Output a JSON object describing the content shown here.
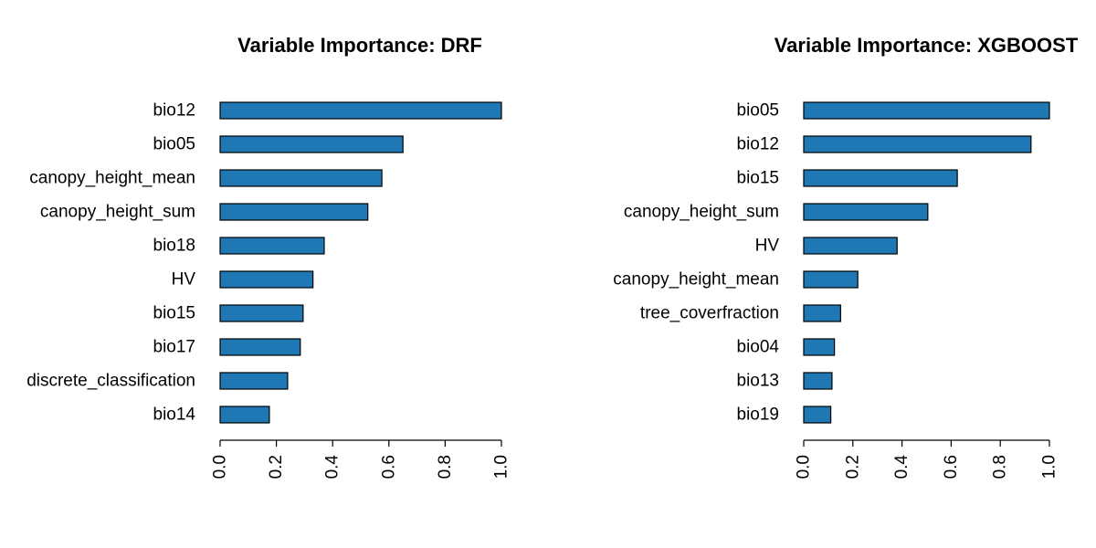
{
  "chart_data": [
    {
      "type": "bar",
      "orientation": "horizontal",
      "title": "Variable Importance: DRF",
      "categories": [
        "bio12",
        "bio05",
        "canopy_height_mean",
        "canopy_height_sum",
        "bio18",
        "HV",
        "bio15",
        "bio17",
        "discrete_classification",
        "bio14"
      ],
      "values": [
        1.0,
        0.65,
        0.575,
        0.525,
        0.37,
        0.33,
        0.295,
        0.285,
        0.24,
        0.175
      ],
      "xlim": [
        0,
        1
      ],
      "xticks": [
        "0.0",
        "0.2",
        "0.4",
        "0.6",
        "0.8",
        "1.0"
      ],
      "xlabel": "",
      "ylabel": "",
      "grid": false,
      "bar_color": "#1f78b4"
    },
    {
      "type": "bar",
      "orientation": "horizontal",
      "title": "Variable Importance: XGBOOST",
      "categories": [
        "bio05",
        "bio12",
        "bio15",
        "canopy_height_sum",
        "HV",
        "canopy_height_mean",
        "tree_coverfraction",
        "bio04",
        "bio13",
        "bio19"
      ],
      "values": [
        1.0,
        0.925,
        0.625,
        0.505,
        0.38,
        0.22,
        0.15,
        0.125,
        0.115,
        0.11
      ],
      "xlim": [
        0,
        1
      ],
      "xticks": [
        "0.0",
        "0.2",
        "0.4",
        "0.6",
        "0.8",
        "1.0"
      ],
      "xlabel": "",
      "ylabel": "",
      "grid": false,
      "bar_color": "#1f78b4"
    }
  ]
}
